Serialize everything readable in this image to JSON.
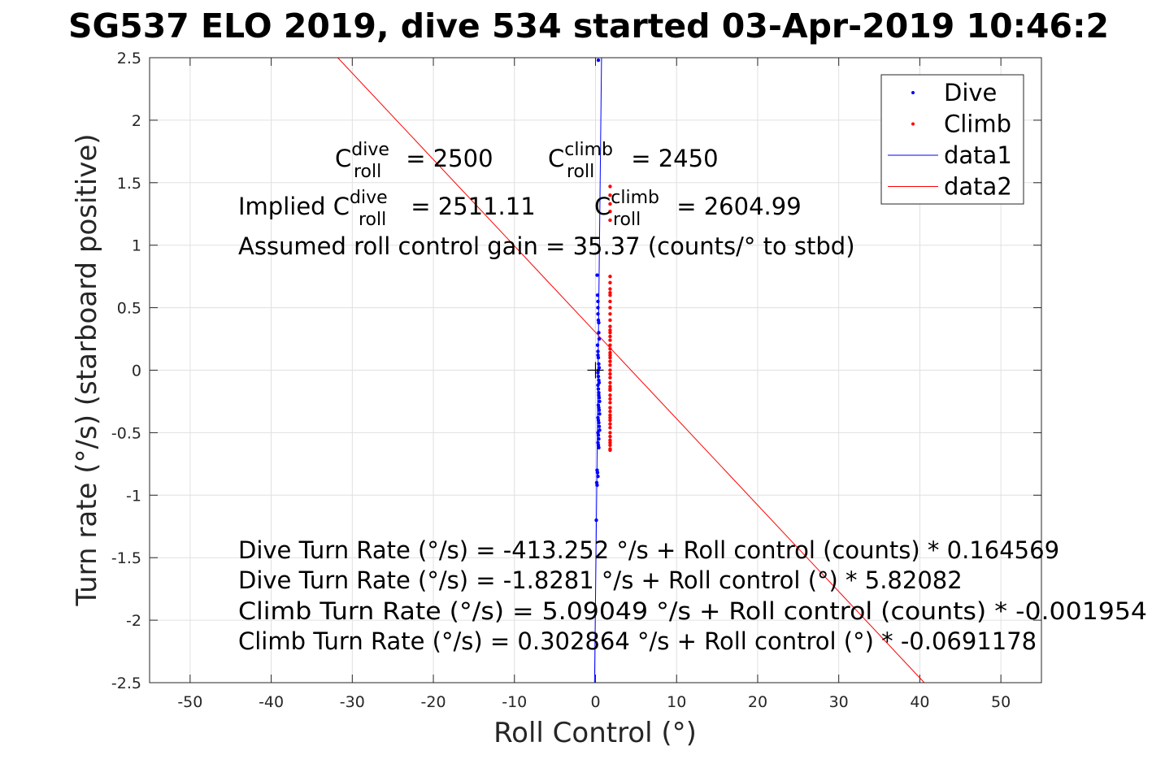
{
  "chart_data": {
    "type": "scatter",
    "title": "SG537 ELO 2019, dive 534 started 03-Apr-2019 10:46:2",
    "xlabel": "Roll Control (°)",
    "ylabel": "Turn rate (°/s) (starboard positive)",
    "xlim": [
      -55,
      55
    ],
    "ylim": [
      -2.5,
      2.5
    ],
    "xticks": [
      -50,
      -40,
      -30,
      -20,
      -10,
      0,
      10,
      20,
      30,
      40,
      50
    ],
    "yticks": [
      -2.5,
      -2,
      -1.5,
      -1,
      -0.5,
      0,
      0.5,
      1,
      1.5,
      2,
      2.5
    ],
    "xtick_labels": [
      "-50",
      "-40",
      "-30",
      "-20",
      "-10",
      "0",
      "10",
      "20",
      "30",
      "40",
      "50"
    ],
    "ytick_labels": [
      "-2.5",
      "-2",
      "-1.5",
      "-1",
      "-0.5",
      "0",
      "0.5",
      "1",
      "1.5",
      "2",
      "2.5"
    ],
    "grid": true,
    "legend_position": "top-right",
    "colors": {
      "dive": "#0000ff",
      "climb": "#ff0000",
      "axes": "#262626",
      "grid": "#e0e0e0"
    },
    "series": [
      {
        "name": "Dive",
        "kind": "points",
        "color": "#0000ff",
        "x": [
          0.35,
          0.2,
          0.25,
          0.3,
          0.3,
          0.3,
          0.35,
          0.4,
          0.4,
          0.45,
          0.25,
          0.3,
          0.3,
          0.35,
          0.4,
          0.45,
          0.35,
          0.3,
          0.35,
          0.4,
          0.45,
          0.3,
          0.35,
          0.4,
          0.4,
          0.45,
          0.5,
          0.35,
          0.4,
          0.45,
          0.5,
          0.3,
          0.35,
          0.4,
          0.45,
          0.5,
          0.3,
          0.35,
          0.4,
          0.3,
          0.35,
          0.4,
          0.2,
          0.25,
          0.3,
          0.15,
          0.2,
          0.1
        ],
        "y": [
          2.48,
          0.76,
          0.6,
          0.55,
          0.5,
          0.45,
          0.4,
          0.38,
          0.3,
          0.25,
          0.2,
          0.15,
          0.12,
          0.1,
          0.05,
          0.02,
          0.0,
          -0.02,
          -0.05,
          -0.08,
          -0.1,
          -0.12,
          -0.15,
          -0.18,
          -0.2,
          -0.22,
          -0.25,
          -0.28,
          -0.3,
          -0.32,
          -0.35,
          -0.38,
          -0.4,
          -0.42,
          -0.45,
          -0.48,
          -0.5,
          -0.52,
          -0.55,
          -0.58,
          -0.6,
          -0.62,
          -0.8,
          -0.82,
          -0.85,
          -0.9,
          -0.92,
          -1.2
        ]
      },
      {
        "name": "Climb",
        "kind": "points",
        "color": "#ff0000",
        "x": [
          1.8,
          1.8,
          1.8,
          1.8,
          1.8,
          1.8,
          1.8,
          1.8,
          1.8,
          1.8,
          1.8,
          1.8,
          1.8,
          1.8,
          1.8,
          1.8,
          1.8,
          1.8,
          1.8,
          1.8,
          1.8,
          1.8,
          1.8,
          1.8,
          1.8,
          1.8,
          1.8,
          1.8,
          1.8,
          1.8,
          1.8,
          1.8,
          1.8,
          1.8,
          1.8,
          1.8,
          1.8,
          1.8,
          1.8,
          1.8,
          1.8,
          1.8,
          1.8,
          1.8,
          1.8,
          1.8,
          1.8,
          1.8,
          1.8,
          1.8
        ],
        "y": [
          1.47,
          1.4,
          1.33,
          1.27,
          1.2,
          0.75,
          0.7,
          0.65,
          0.6,
          0.55,
          0.5,
          0.45,
          0.4,
          0.35,
          0.3,
          0.27,
          0.24,
          0.2,
          0.17,
          0.14,
          0.1,
          0.07,
          0.04,
          0.0,
          -0.03,
          -0.06,
          -0.1,
          -0.13,
          -0.16,
          -0.2,
          -0.23,
          -0.26,
          -0.3,
          -0.33,
          -0.36,
          -0.4,
          -0.43,
          -0.46,
          -0.5,
          -0.53,
          -0.56,
          -0.6,
          -0.63,
          -0.64,
          0.62,
          0.32,
          0.12,
          -0.15,
          -0.38,
          -0.58
        ]
      },
      {
        "name": "data1",
        "kind": "line",
        "color": "#0000ff",
        "x": [
          -0.116,
          0.744
        ],
        "y": [
          -2.5,
          2.5
        ]
      },
      {
        "name": "data2",
        "kind": "line",
        "color": "#ff0000",
        "x": [
          -31.79,
          40.55
        ],
        "y": [
          2.5,
          -2.5
        ]
      }
    ],
    "origin_marker": {
      "x": 0,
      "y": 0
    },
    "annotations": {
      "c_dive_prefix": "C",
      "c_dive_sup": "dive",
      "c_dive_sub": "roll",
      "c_dive_value": " = 2500",
      "c_climb_prefix": "C",
      "c_climb_sup": "climb",
      "c_climb_sub": "roll",
      "c_climb_value": " = 2450",
      "implied_prefix": "Implied C",
      "implied_dive_sup": "dive",
      "implied_dive_sub": "roll",
      "implied_dive_value": " = 2511.11",
      "implied_climb_prefix": "C",
      "implied_climb_sup": "climb",
      "implied_climb_sub": "roll",
      "implied_climb_value": " = 2604.99",
      "gain": "Assumed roll control gain = 35.37 (counts/° to stbd)",
      "eq1": "Dive Turn Rate (°/s) = -413.252 °/s + Roll control (counts) * 0.164569",
      "eq2": "Dive Turn Rate (°/s) = -1.8281 °/s + Roll control (°) * 5.82082",
      "eq3": "Climb Turn Rate (°/s) = 5.09049 °/s + Roll control (counts) * -0.001954",
      "eq4": "Climb Turn Rate (°/s) = 0.302864 °/s + Roll control (°) * -0.0691178"
    }
  }
}
